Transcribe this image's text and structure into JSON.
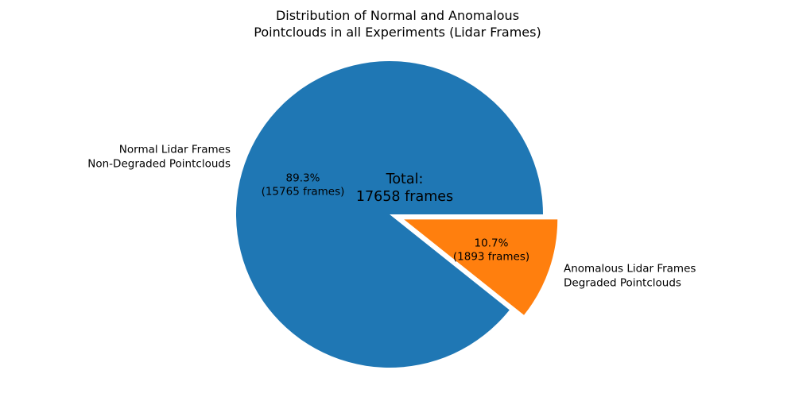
{
  "chart_data": {
    "type": "pie",
    "title": "Distribution of Normal and Anomalous\nPointclouds in all Experiments (Lidar Frames)",
    "total_label": "Total:\n17658 frames",
    "total_frames": 17658,
    "start_angle": 0,
    "counterclockwise": true,
    "legend": "none",
    "background_color": "#ffffff",
    "text_color": "#000000",
    "slices": [
      {
        "name": "normal",
        "label": "Normal Lidar Frames\nNon-Degraded Pointclouds",
        "value": 15765,
        "pct": 89.3,
        "pct_label": "89.3%\n(15765 frames)",
        "color": "#1f77b4",
        "explode": 0
      },
      {
        "name": "anomalous",
        "label": "Anomalous Lidar Frames\nDegraded Pointclouds",
        "value": 1893,
        "pct": 10.7,
        "pct_label": "10.7%\n(1893 frames)",
        "color": "#ff7f0e",
        "explode": 0.1
      }
    ]
  }
}
